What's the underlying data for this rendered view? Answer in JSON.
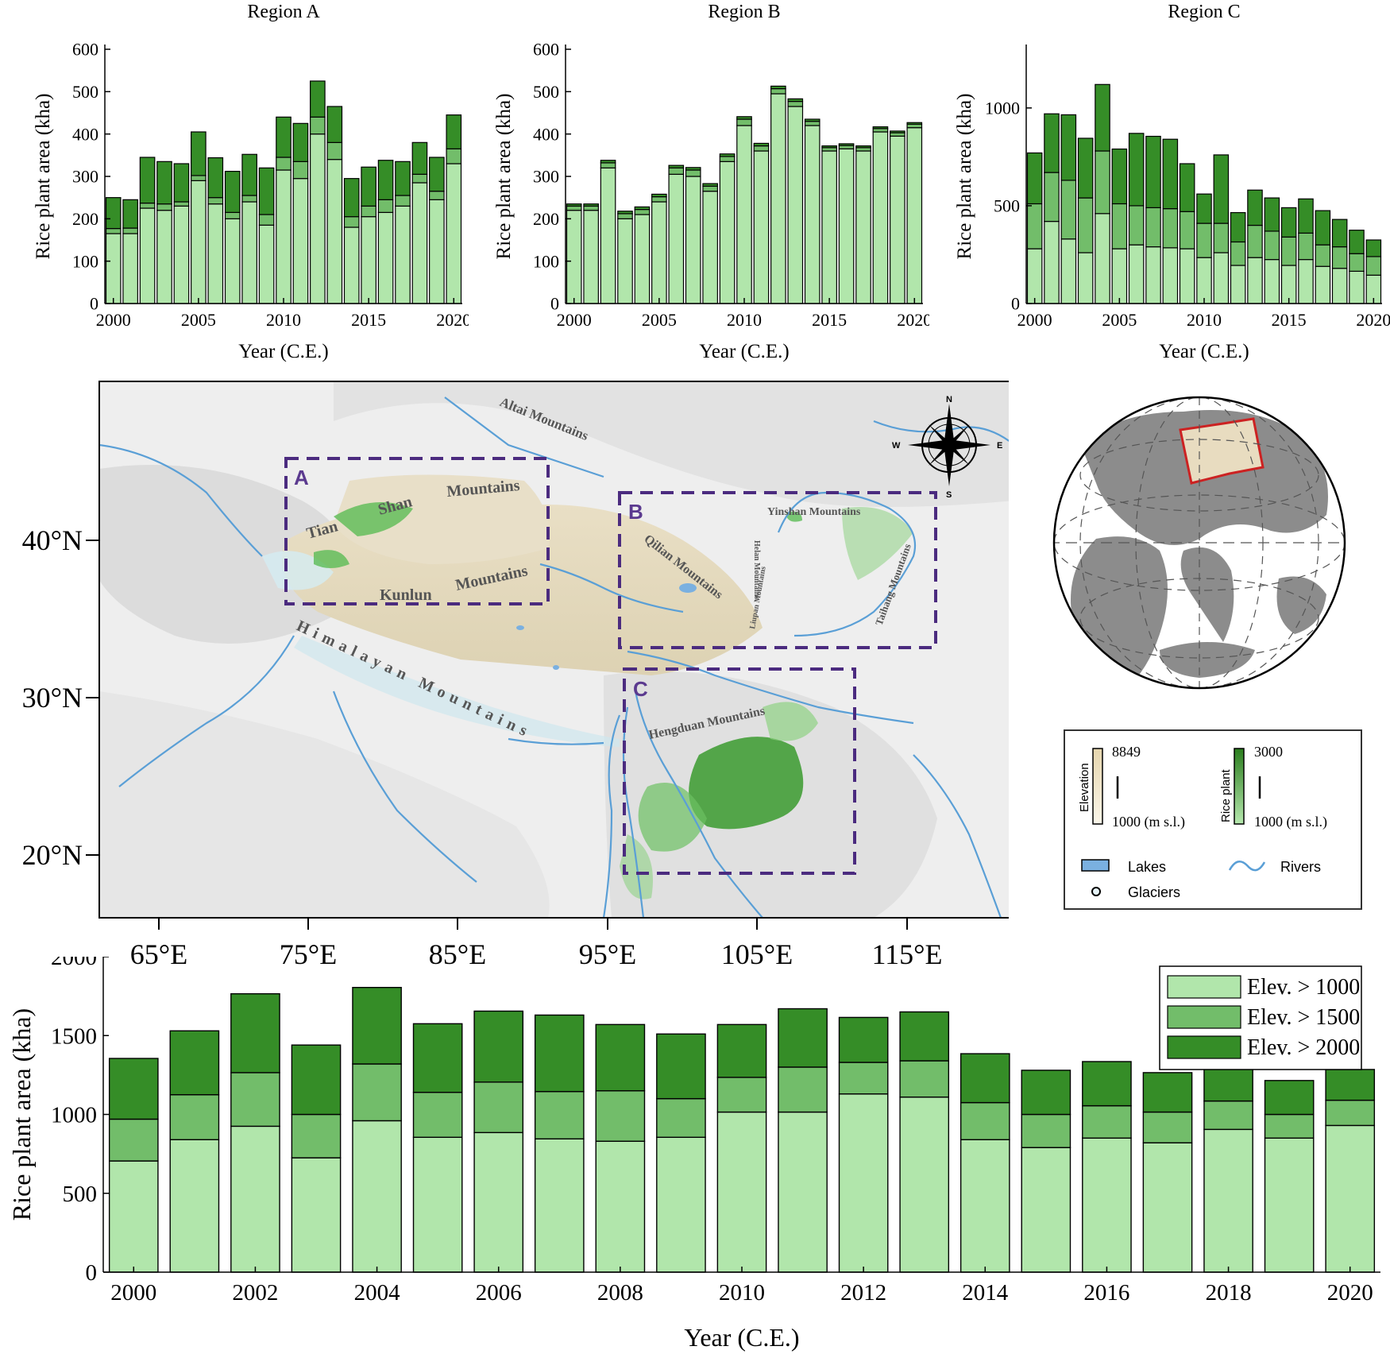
{
  "colors": {
    "elev_1000": "#b1e6ab",
    "elev_1500": "#72bd6a",
    "elev_2000": "#358d27",
    "lake": "#7ab0e0",
    "river": "#5a9fd6",
    "box": "#4b2b7f",
    "globe_land": "#8c8c8c",
    "globe_region": "#e8dcc0",
    "globe_frame": "#cc2222"
  },
  "chart_data": [
    {
      "type": "bar",
      "stacked": true,
      "title": "Region A",
      "xlabel": "Year (C.E.)",
      "ylabel": "Rice plant area (kha)",
      "ylim": [
        0,
        600
      ],
      "yticks": [
        0,
        100,
        200,
        300,
        400,
        500,
        600
      ],
      "xticks": [
        2000,
        2005,
        2010,
        2015,
        2020
      ],
      "categories": [
        2000,
        2001,
        2002,
        2003,
        2004,
        2005,
        2006,
        2007,
        2008,
        2009,
        2010,
        2011,
        2012,
        2013,
        2014,
        2015,
        2016,
        2017,
        2018,
        2019,
        2020
      ],
      "series": [
        {
          "name": "Elev. > 1000",
          "values": [
            165,
            165,
            225,
            220,
            230,
            290,
            235,
            200,
            240,
            185,
            315,
            295,
            400,
            340,
            180,
            205,
            215,
            230,
            285,
            245,
            330
          ]
        },
        {
          "name": "Elev. > 1500",
          "values": [
            12,
            13,
            12,
            15,
            10,
            12,
            15,
            15,
            15,
            25,
            30,
            40,
            40,
            40,
            25,
            25,
            30,
            25,
            20,
            20,
            35
          ]
        },
        {
          "name": "Elev. > 2000",
          "values": [
            73,
            67,
            108,
            100,
            90,
            103,
            94,
            97,
            97,
            110,
            95,
            90,
            85,
            85,
            90,
            92,
            93,
            80,
            75,
            80,
            80
          ]
        }
      ]
    },
    {
      "type": "bar",
      "stacked": true,
      "title": "Region B",
      "xlabel": "Year (C.E.)",
      "ylabel": "Rice plant area (kha)",
      "ylim": [
        0,
        600
      ],
      "yticks": [
        0,
        100,
        200,
        300,
        400,
        500,
        600
      ],
      "xticks": [
        2000,
        2005,
        2010,
        2015,
        2020
      ],
      "categories": [
        2000,
        2001,
        2002,
        2003,
        2004,
        2005,
        2006,
        2007,
        2008,
        2009,
        2010,
        2011,
        2012,
        2013,
        2014,
        2015,
        2016,
        2017,
        2018,
        2019,
        2020
      ],
      "series": [
        {
          "name": "Elev. > 1000",
          "values": [
            220,
            220,
            320,
            200,
            210,
            240,
            305,
            300,
            265,
            335,
            420,
            360,
            495,
            465,
            420,
            360,
            365,
            360,
            405,
            395,
            415
          ]
        },
        {
          "name": "Elev. > 1500",
          "values": [
            10,
            10,
            12,
            12,
            12,
            12,
            15,
            15,
            12,
            12,
            15,
            12,
            12,
            12,
            10,
            8,
            8,
            8,
            8,
            8,
            8
          ]
        },
        {
          "name": "Elev. > 2000",
          "values": [
            5,
            5,
            6,
            6,
            6,
            6,
            6,
            6,
            6,
            6,
            6,
            6,
            6,
            6,
            5,
            4,
            4,
            4,
            4,
            4,
            4
          ]
        }
      ]
    },
    {
      "type": "bar",
      "stacked": true,
      "title": "Region C",
      "xlabel": "Year (C.E.)",
      "ylabel": "Rice plant area (kha)",
      "ylim": [
        0,
        1300
      ],
      "yticks": [
        0,
        500,
        1000
      ],
      "xticks": [
        2000,
        2005,
        2010,
        2015,
        2020
      ],
      "categories": [
        2000,
        2001,
        2002,
        2003,
        2004,
        2005,
        2006,
        2007,
        2008,
        2009,
        2010,
        2011,
        2012,
        2013,
        2014,
        2015,
        2016,
        2017,
        2018,
        2019,
        2020
      ],
      "series": [
        {
          "name": "Elev. > 1000",
          "values": [
            280,
            420,
            330,
            260,
            460,
            280,
            300,
            290,
            285,
            280,
            235,
            260,
            195,
            235,
            225,
            195,
            225,
            190,
            180,
            165,
            145
          ]
        },
        {
          "name": "Elev. > 1500",
          "values": [
            230,
            250,
            300,
            280,
            320,
            230,
            200,
            200,
            200,
            190,
            175,
            150,
            120,
            165,
            145,
            145,
            135,
            110,
            110,
            90,
            95
          ]
        },
        {
          "name": "Elev. > 2000",
          "values": [
            260,
            300,
            335,
            305,
            340,
            280,
            370,
            365,
            355,
            245,
            150,
            350,
            150,
            180,
            170,
            150,
            175,
            175,
            140,
            120,
            85
          ]
        }
      ]
    },
    {
      "type": "bar",
      "stacked": true,
      "title": "",
      "xlabel": "Year (C.E.)",
      "ylabel": "Rice plant area (kha)",
      "ylim": [
        0,
        2000
      ],
      "yticks": [
        0,
        500,
        1000,
        1500,
        2000
      ],
      "xticks": [
        2000,
        2002,
        2004,
        2006,
        2008,
        2010,
        2012,
        2014,
        2016,
        2018,
        2020
      ],
      "categories": [
        2000,
        2001,
        2002,
        2003,
        2004,
        2005,
        2006,
        2007,
        2008,
        2009,
        2010,
        2011,
        2012,
        2013,
        2014,
        2015,
        2016,
        2017,
        2018,
        2019,
        2020
      ],
      "legend": "top-right",
      "series": [
        {
          "name": "Elev. > 1000",
          "values": [
            705,
            840,
            925,
            725,
            960,
            855,
            885,
            845,
            830,
            855,
            1015,
            1015,
            1130,
            1110,
            840,
            790,
            850,
            820,
            905,
            850,
            930
          ]
        },
        {
          "name": "Elev. > 1500",
          "values": [
            265,
            285,
            340,
            275,
            360,
            285,
            320,
            300,
            320,
            245,
            220,
            285,
            200,
            230,
            235,
            210,
            205,
            195,
            180,
            150,
            160
          ]
        },
        {
          "name": "Elev. > 2000",
          "values": [
            385,
            405,
            500,
            440,
            485,
            435,
            450,
            485,
            420,
            410,
            335,
            370,
            285,
            310,
            310,
            280,
            280,
            250,
            220,
            215,
            195
          ]
        }
      ]
    }
  ],
  "map": {
    "lat_labels": [
      "40°N",
      "30°N",
      "20°N"
    ],
    "lon_labels": [
      "65°E",
      "75°E",
      "85°E",
      "95°E",
      "105°E",
      "115°E"
    ],
    "boxes": [
      "A",
      "B",
      "C"
    ],
    "mountain_labels": [
      "Altai Mountains",
      "Tian",
      "Shan",
      "Mountains",
      "Kunlun",
      "Mountains",
      "Qilian Mountains",
      "Yinshan Mountains",
      "Helan Mountains",
      "Liupan Mountains",
      "Taihang Mountains",
      "Himalayan Mountains",
      "Hengduan Mountains"
    ],
    "compass": {
      "n": "N",
      "s": "S",
      "e": "E",
      "w": "W"
    }
  },
  "legend_box": {
    "elevation_label": "Elevation",
    "elevation_max": "8849",
    "elevation_min": "1000 (m s.l.)",
    "rice_label": "Rice plant",
    "rice_max": "3000",
    "rice_min": "1000 (m s.l.)",
    "lakes": "Lakes",
    "rivers": "Rivers",
    "glaciers": "Glaciers"
  }
}
